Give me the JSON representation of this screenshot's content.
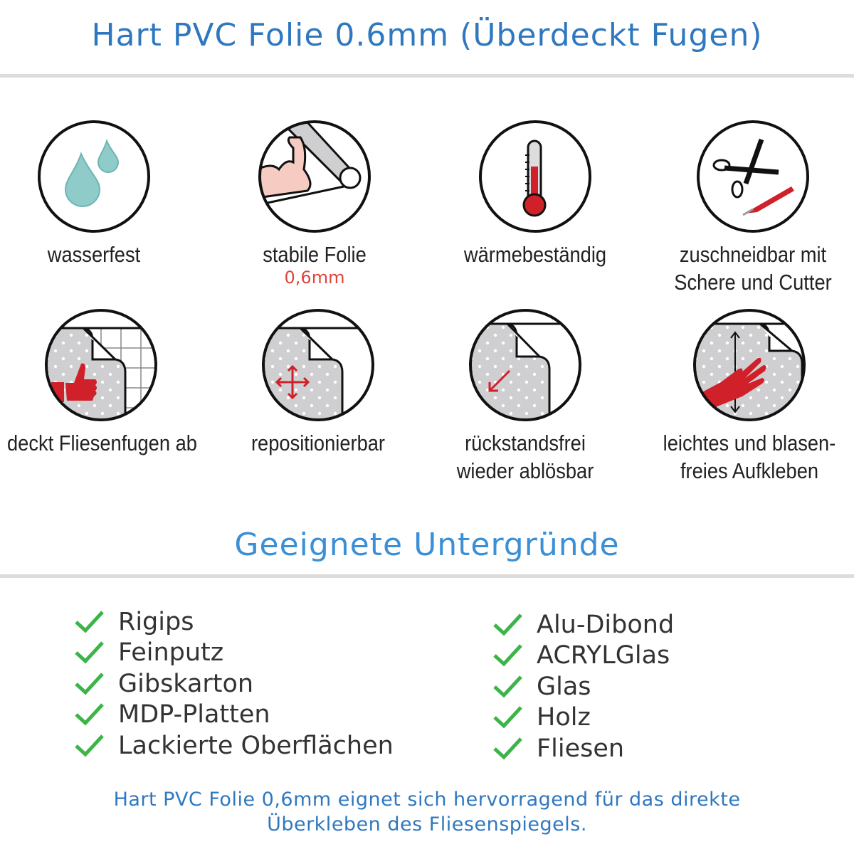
{
  "header": {
    "title": "Hart PVC Folie 0.6mm (Überdeckt Fugen)"
  },
  "features": [
    {
      "icon": "water-drops-icon",
      "label": "wasserfest"
    },
    {
      "icon": "strong-arm-foil-icon",
      "label": "stabile Folie",
      "sublabel": "0,6mm"
    },
    {
      "icon": "thermometer-icon",
      "label": "wärmebeständig"
    },
    {
      "icon": "scissors-cutter-icon",
      "label": "zuschneidbar mit",
      "label2": "Schere und Cutter"
    },
    {
      "icon": "thumbs-up-tiles-icon",
      "label": "deckt Fliesenfugen ab"
    },
    {
      "icon": "move-arrows-icon",
      "label": "repositionierbar"
    },
    {
      "icon": "peel-arrow-icon",
      "label": "rückstandsfrei",
      "label2": "wieder ablösbar"
    },
    {
      "icon": "hand-smooth-icon",
      "label": "leichtes und blasen-",
      "label2": "freies Aufkleben"
    }
  ],
  "surfaces": {
    "title": "Geeignete Untergründe",
    "left": [
      "Rigips",
      "Feinputz",
      "Gibskarton",
      "MDP-Platten",
      "Lackierte Oberflächen"
    ],
    "right": [
      "Alu-Dibond",
      "ACRYLGlas",
      "Glas",
      "Holz",
      "Fliesen"
    ]
  },
  "footer": {
    "line1": "Hart PVC Folie 0,6mm eignet sich hervorragend für das direkte",
    "line2": "Überkleben des Fliesenspiegels."
  },
  "colors": {
    "title": "#2f78c0",
    "accent_red": "#d0202a",
    "check": "#3cb44a",
    "drop": "#8ecbc9"
  }
}
